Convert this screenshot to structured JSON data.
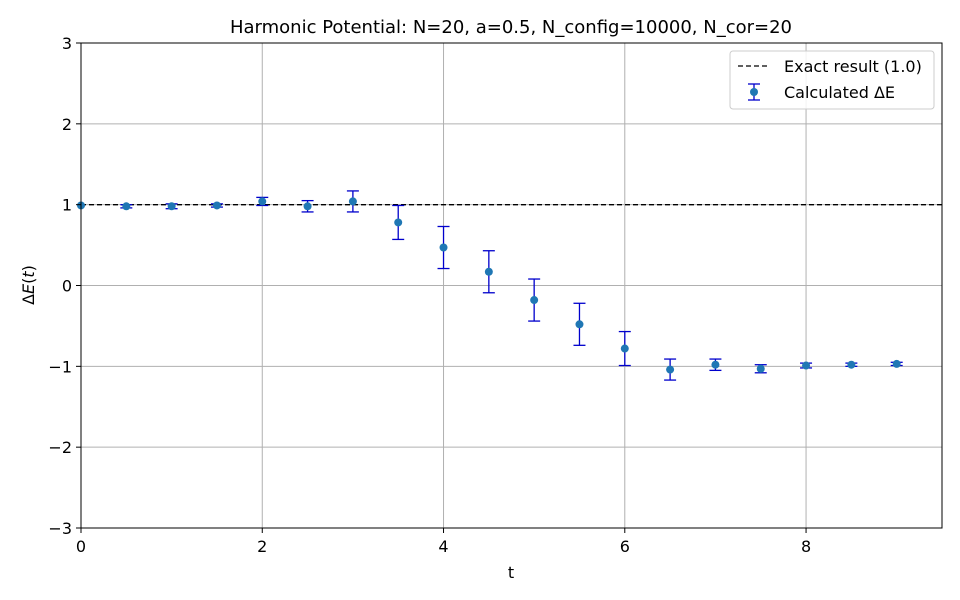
{
  "chart_data": {
    "type": "scatter",
    "title": "Harmonic Potential: N=20, a=0.5, N_config=10000, N_cor=20",
    "xlabel": "t",
    "ylabel": "ΔE(t)",
    "xlim": [
      0,
      9.5
    ],
    "ylim": [
      -3,
      3
    ],
    "x_ticks": [
      "0",
      "2",
      "4",
      "6",
      "8"
    ],
    "y_ticks": [
      "−3",
      "−2",
      "−1",
      "0",
      "1",
      "2",
      "3"
    ],
    "x_tick_values": [
      0,
      2,
      4,
      6,
      8
    ],
    "y_tick_values": [
      -3,
      -2,
      -1,
      0,
      1,
      2,
      3
    ],
    "grid": true,
    "legend_position": "top-right",
    "reference_line": {
      "name": "Exact result (1.0)",
      "y": 1.0,
      "color": "#000000",
      "style": "dashed"
    },
    "series": [
      {
        "name": "Calculated ΔE",
        "color": "#1f77b4",
        "errorbar_color": "#0000cc",
        "x": [
          0,
          0.5,
          1.0,
          1.5,
          2.0,
          2.5,
          3.0,
          3.5,
          4.0,
          4.5,
          5.0,
          5.5,
          6.0,
          6.5,
          7.0,
          7.5,
          8.0,
          8.5,
          9.0
        ],
        "y": [
          0.99,
          0.98,
          0.98,
          0.99,
          1.04,
          0.98,
          1.04,
          0.78,
          0.47,
          0.17,
          -0.18,
          -0.48,
          -0.78,
          -1.04,
          -0.98,
          -1.03,
          -0.99,
          -0.98,
          -0.97
        ],
        "err": [
          0.0,
          0.02,
          0.03,
          0.02,
          0.05,
          0.07,
          0.13,
          0.21,
          0.26,
          0.26,
          0.26,
          0.26,
          0.21,
          0.13,
          0.07,
          0.05,
          0.03,
          0.02,
          0.02
        ]
      }
    ]
  }
}
